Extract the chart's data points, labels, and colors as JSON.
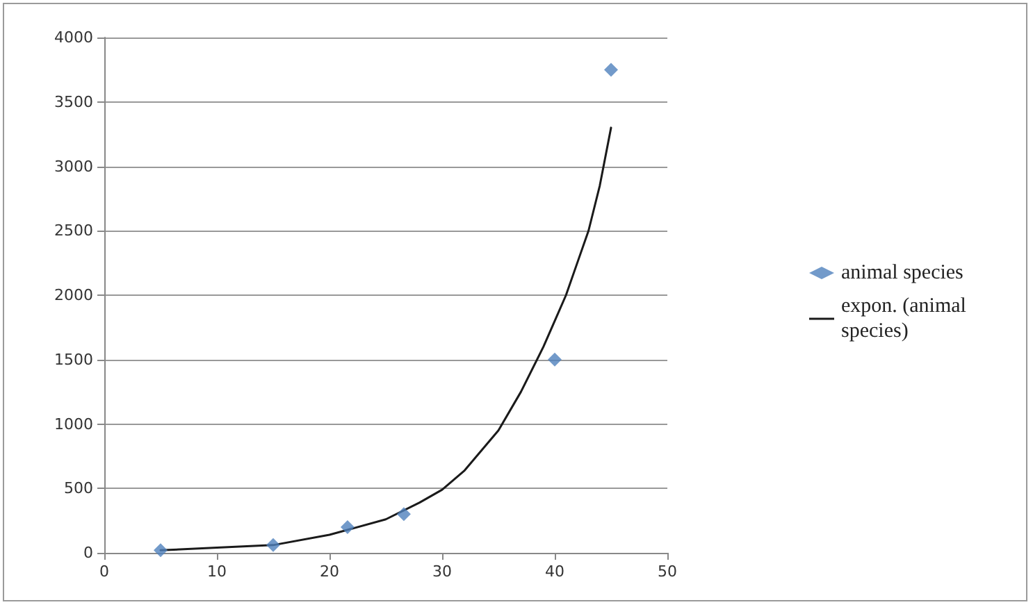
{
  "chart_data": {
    "type": "scatter",
    "series": [
      {
        "name": "animal species",
        "color": "#4f81bd",
        "marker": "diamond",
        "x": [
          5,
          15,
          21.6,
          26.6,
          40,
          45
        ],
        "values": [
          20,
          60,
          200,
          300,
          1500,
          3750
        ]
      },
      {
        "name": "expon. (animal species)",
        "type": "line",
        "color": "#1a1a1a",
        "marker": "none",
        "line_style": "solid",
        "x": [
          5,
          10,
          15,
          20,
          25,
          28,
          30,
          32,
          35,
          37,
          39,
          40,
          41,
          42,
          43,
          44,
          45
        ],
        "values": [
          20,
          40,
          60,
          140,
          260,
          390,
          490,
          640,
          950,
          1250,
          1600,
          1800,
          2000,
          2250,
          2500,
          2850,
          3300
        ]
      }
    ],
    "xlim": [
      0,
      50
    ],
    "xticks": [
      0,
      10,
      20,
      30,
      40,
      50
    ],
    "ylim": [
      0,
      4000
    ],
    "yticks": [
      0,
      500,
      1000,
      1500,
      2000,
      2500,
      3000,
      3500,
      4000
    ],
    "grid": "y",
    "legend": "right"
  }
}
